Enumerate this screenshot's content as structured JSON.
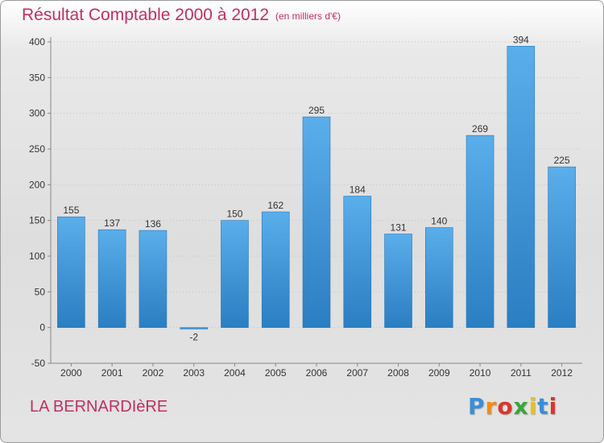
{
  "header": {
    "title": "Résultat Comptable 2000 à 2012",
    "subtitle": "(en milliers d'€)"
  },
  "footer": {
    "commune": "LA BERNARDIèRE",
    "logo_letters": [
      "P",
      "r",
      "o",
      "x",
      "i",
      "t",
      "i"
    ],
    "logo_colors": [
      "#3a8ed8",
      "#f08c1a",
      "#d9362b",
      "#3aa63a",
      "#e6c21c",
      "#3a8ed8",
      "#d9362b"
    ]
  },
  "colors": {
    "bar_top": "#5aaeea",
    "bar_bottom": "#2a7ec2",
    "grid": "#c4c4c4",
    "axis": "#888888"
  },
  "chart_data": {
    "type": "bar",
    "title": "Résultat Comptable 2000 à 2012",
    "subtitle": "(en milliers d'€)",
    "xlabel": "",
    "ylabel": "",
    "categories": [
      "2000",
      "2001",
      "2002",
      "2003",
      "2004",
      "2005",
      "2006",
      "2007",
      "2008",
      "2009",
      "2010",
      "2011",
      "2012"
    ],
    "values": [
      155,
      137,
      136,
      -2,
      150,
      162,
      295,
      184,
      131,
      140,
      269,
      394,
      225
    ],
    "value_labels": [
      "155",
      "137",
      "136",
      "-2",
      "150",
      "162",
      "295",
      "184",
      "131",
      "140",
      "269",
      "394",
      "225"
    ],
    "ylim": [
      -50,
      400
    ],
    "yticks": [
      -50,
      0,
      50,
      100,
      150,
      200,
      250,
      300,
      350,
      400
    ],
    "ytick_labels": [
      "-50",
      "0",
      "50",
      "100",
      "150",
      "200",
      "250",
      "300",
      "350",
      "400"
    ],
    "grid": true
  }
}
